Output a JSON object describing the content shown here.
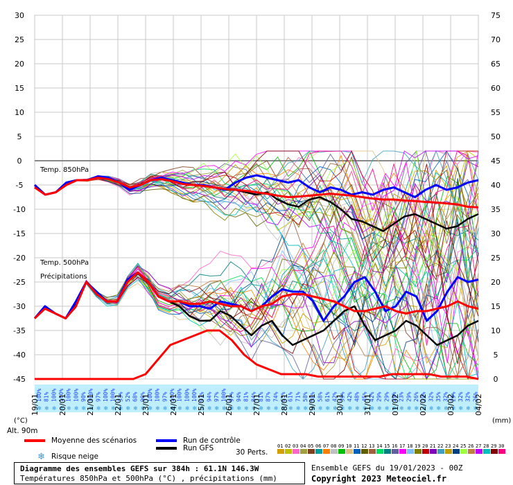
{
  "chart_data": {
    "type": "line",
    "title": "Diagramme des ensembles GEFS sur 384h : 61.1N 146.3W",
    "subtitle": "Températures 850hPa et 500hPa (°C) , précipitations (mm)",
    "left_axis_unit": "(°C)",
    "right_axis_unit": "(mm)",
    "ylim": [
      -45,
      30
    ],
    "y_ticks": [
      30,
      25,
      20,
      15,
      10,
      5,
      0,
      -5,
      -10,
      -15,
      -20,
      -25,
      -30,
      -35,
      -40,
      -45
    ],
    "y2lim": [
      0,
      75
    ],
    "y2_ticks": [
      75,
      70,
      65,
      60,
      55,
      50,
      45,
      40,
      35,
      30,
      25,
      20,
      15,
      10,
      5,
      0
    ],
    "x_ticks": [
      "20/01",
      "21/01",
      "22/01",
      "23/01",
      "24/01",
      "25/01",
      "26/01",
      "27/01",
      "28/01",
      "29/01",
      "30/01",
      "31/01",
      "01/02",
      "02/02",
      "03/02",
      "04/02"
    ],
    "first_x_label": "19/01",
    "annotations": [
      "Temp. 850hPa",
      "Temp. 500hPa",
      "Précipitations"
    ],
    "snow_risk": [
      "100%",
      "81%",
      "100%",
      "100%",
      "100%",
      "100%",
      "90%",
      "100%",
      "97%",
      "100%",
      "100%",
      "33%",
      "52%",
      "68%",
      "90%",
      "100%",
      "100%",
      "97%",
      "100%",
      "100%",
      "100%",
      "100%",
      "97%",
      "94%",
      "97%",
      "100%",
      "97%",
      "94%",
      "81%",
      "84%",
      "81%",
      "87%",
      "74%",
      "65%",
      "61%",
      "71%",
      "58%",
      "58%",
      "58%",
      "61%",
      "42%",
      "39%",
      "42%",
      "48%",
      "45%",
      "42%",
      "29%",
      "29%",
      "29%",
      "23%",
      "29%",
      "26%",
      "29%",
      "32%",
      "35%",
      "32%",
      "29%",
      "32%",
      "32%",
      "26%"
    ],
    "series": [
      {
        "name": "Moyenne des scénarios",
        "color": "#ff0000",
        "t850": [
          -5.5,
          -7,
          -6.5,
          -5,
          -4,
          -4,
          -3.5,
          -3.8,
          -4.5,
          -5.5,
          -5,
          -4,
          -3.8,
          -4.2,
          -4.8,
          -5,
          -5.2,
          -5.5,
          -5.8,
          -6,
          -6.2,
          -6.5,
          -6.8,
          -7.2,
          -7.5,
          -7.4,
          -7.2,
          -7,
          -6.8,
          -7,
          -7.2,
          -7.5,
          -7.8,
          -8,
          -8,
          -8.2,
          -8.3,
          -8.5,
          -8.6,
          -8.8,
          -9,
          -9.5,
          -9.6
        ],
        "t500": [
          -32.5,
          -30.5,
          -31.5,
          -32.5,
          -30,
          -25,
          -27.5,
          -29,
          -29,
          -25,
          -23,
          -25,
          -28,
          -29,
          -29,
          -29.5,
          -29.5,
          -29,
          -29.5,
          -30,
          -30,
          -31,
          -30,
          -29.5,
          -28,
          -27.5,
          -27.5,
          -28,
          -28.5,
          -29,
          -30,
          -31,
          -31,
          -30.5,
          -30,
          -31,
          -31.5,
          -31,
          -31,
          -30.5,
          -30,
          -29,
          -30,
          -30.5
        ],
        "precip": [
          0,
          0,
          0,
          0,
          0,
          0,
          0,
          0,
          0,
          1,
          4,
          7,
          8,
          9,
          10,
          10,
          8,
          5,
          3,
          2,
          1,
          1,
          1,
          0.5,
          0.5,
          0.5,
          0.5,
          0.5,
          0.5,
          1,
          1,
          1,
          1,
          0.5,
          0.5,
          0.5,
          0
        ]
      },
      {
        "name": "Run de contrôle",
        "color": "#0000ff",
        "t850": [
          -5,
          -7,
          -6.5,
          -4.5,
          -4,
          -4,
          -3.2,
          -3.5,
          -4.5,
          -6,
          -5,
          -4,
          -3.5,
          -4,
          -4.5,
          -5,
          -5,
          -5.5,
          -6,
          -4.5,
          -3.5,
          -3,
          -3.5,
          -4,
          -4.5,
          -4,
          -5.5,
          -6.5,
          -5.5,
          -6,
          -7,
          -6.5,
          -7,
          -6,
          -5.5,
          -6.5,
          -7.5,
          -6,
          -5,
          -6,
          -5.5,
          -4.5,
          -4
        ],
        "t500": [
          -32.5,
          -30,
          -31.5,
          -32.5,
          -29,
          -25,
          -27,
          -29,
          -29,
          -24.5,
          -23,
          -25,
          -28,
          -29,
          -29,
          -30,
          -30,
          -30.5,
          -29,
          -29.5,
          -30,
          -31,
          -30,
          -28,
          -26.5,
          -27,
          -27,
          -29,
          -33,
          -30,
          -28,
          -25,
          -24,
          -27,
          -31,
          -30,
          -27,
          -28,
          -33,
          -31,
          -27,
          -24,
          -25,
          -24.5
        ]
      },
      {
        "name": "Run GFS",
        "color": "#000000",
        "t850": [
          -5,
          -7,
          -6.5,
          -5,
          -4,
          -4,
          -3.5,
          -3.7,
          -4.5,
          -5.5,
          -5,
          -4,
          -3.6,
          -4,
          -4.5,
          -5,
          -5,
          -5.5,
          -6,
          -6,
          -6.5,
          -7,
          -6.5,
          -8,
          -9,
          -9.5,
          -8,
          -7.5,
          -8.5,
          -10,
          -12,
          -12.5,
          -13.5,
          -14.5,
          -13,
          -11.5,
          -11,
          -12,
          -13,
          -14,
          -13.5,
          -12,
          -11
        ],
        "t500": [
          -32.5,
          -30,
          -31.5,
          -32.5,
          -29.5,
          -25,
          -27,
          -29,
          -29,
          -24.5,
          -23,
          -25,
          -28,
          -29,
          -30,
          -32,
          -33,
          -33,
          -31,
          -32,
          -34,
          -36,
          -34,
          -33,
          -36,
          -38,
          -37,
          -36,
          -35,
          -33,
          -31,
          -30,
          -34,
          -37,
          -36,
          -35,
          -33,
          -34,
          -36,
          -38,
          -37,
          -36,
          -34,
          -33
        ]
      }
    ]
  },
  "legend": {
    "mean_label": "Moyenne des scénarios",
    "control_label": "Run de contrôle",
    "gfs_label": "Run GFS",
    "snow_label": "Risque neige",
    "perts_label": "30 Perts.",
    "alt_label": "Alt. 90m",
    "pert_numbers": [
      "01",
      "02",
      "03",
      "04",
      "05",
      "06",
      "07",
      "08",
      "09",
      "10",
      "11",
      "12",
      "13",
      "14",
      "15",
      "16",
      "17",
      "18",
      "19",
      "20",
      "21",
      "22",
      "23",
      "24",
      "25",
      "26",
      "27",
      "28",
      "29",
      "30"
    ],
    "pert_colors": [
      "#d4a000",
      "#c0c000",
      "#ff66cc",
      "#a0a040",
      "#804020",
      "#00a0a0",
      "#ff8000",
      "#c0c0c0",
      "#00c000",
      "#e0c080",
      "#0060c0",
      "#606000",
      "#a06040",
      "#00e060",
      "#008080",
      "#6060a0",
      "#ff00ff",
      "#80c0ff",
      "#808000",
      "#c00000",
      "#8000c0",
      "#40a0c0",
      "#c0a000",
      "#004080",
      "#a0ff40",
      "#c08040",
      "#c000ff",
      "#00c0c0",
      "#800000",
      "#ff0080"
    ]
  },
  "footer": {
    "title": "Diagramme des ensembles GEFS sur 384h : 61.1N 146.3W",
    "subtitle": "Températures 850hPa et 500hPa (°C) , précipitations (mm)",
    "run_info": "Ensemble GEFS du 19/01/2023 - 00Z",
    "copyright": "Copyright 2023 Meteociel.fr"
  },
  "colors": {
    "mean": "#ff0000",
    "control": "#0000ff",
    "gfs": "#000000",
    "grid": "#c8c8c8",
    "zero_line": "#888888",
    "snow_bg": "#bfefff",
    "snow_text": "#1a3cff"
  }
}
